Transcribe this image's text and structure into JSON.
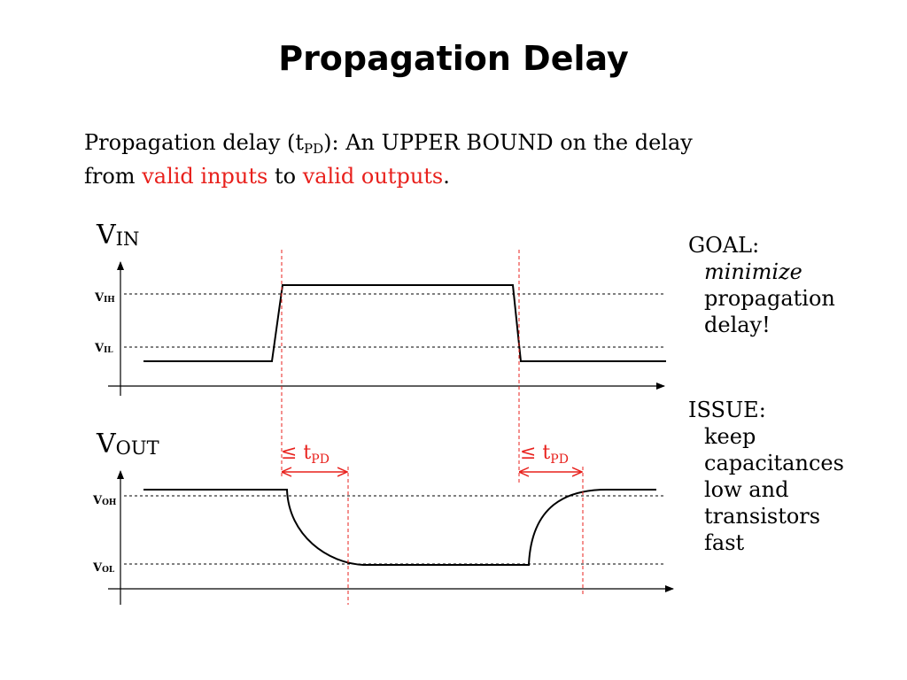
{
  "slide": {
    "title": "Propagation Delay"
  },
  "intro": {
    "part1": "Propagation delay (t",
    "sub": "PD",
    "part2": "):  An UPPER BOUND on the delay",
    "part3": "from ",
    "red1": "valid inputs",
    "part4": " to ",
    "red2": "valid outputs",
    "part5": "."
  },
  "diagram": {
    "vin_label": "V",
    "vin_sub": "IN",
    "vout_label": "V",
    "vout_sub": "OUT",
    "vih_label": "V",
    "vih_sub": "IH",
    "vil_label": "V",
    "vil_sub": "IL",
    "voh_label": "V",
    "voh_sub": "OH",
    "vol_label": "V",
    "vol_sub": "OL",
    "delay1_prefix": "≤ t",
    "delay1_sub": "PD",
    "delay2_prefix": "≤ t",
    "delay2_sub": "PD",
    "red_color": "#e8201c"
  },
  "goal": {
    "heading": "GOAL:",
    "line1": "minimize",
    "line2": "propagation",
    "line3": "delay!"
  },
  "issue": {
    "heading": "ISSUE:",
    "line1": "keep",
    "line2": "capacitances",
    "line3": "low and",
    "line4": "transistors",
    "line5": "fast"
  }
}
